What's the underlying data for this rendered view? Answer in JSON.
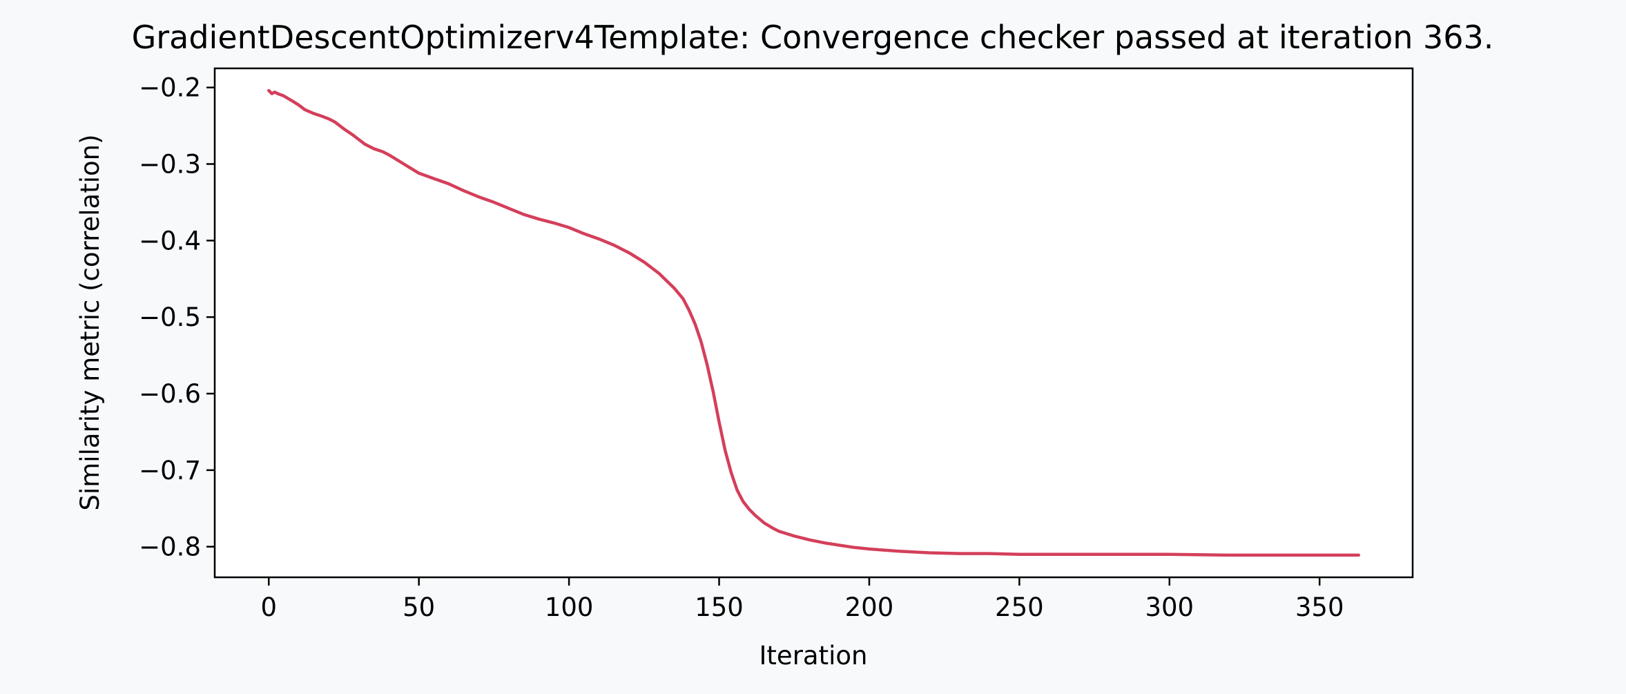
{
  "chart_data": {
    "type": "line",
    "title": "GradientDescentOptimizerv4Template: Convergence checker passed at iteration 363.",
    "xlabel": "Iteration",
    "ylabel": "Similarity metric (correlation)",
    "xlim": [
      -18,
      381
    ],
    "ylim": [
      -0.84,
      -0.175
    ],
    "xticks": [
      0,
      50,
      100,
      150,
      200,
      250,
      300,
      350
    ],
    "xtick_labels": [
      "0",
      "50",
      "100",
      "150",
      "200",
      "250",
      "300",
      "350"
    ],
    "yticks": [
      -0.2,
      -0.3,
      -0.4,
      -0.5,
      -0.6,
      -0.7,
      -0.8
    ],
    "ytick_labels": [
      "−0.2",
      "−0.3",
      "−0.4",
      "−0.5",
      "−0.6",
      "−0.7",
      "−0.8"
    ],
    "grid": false,
    "series": [
      {
        "color": "#d43f5a",
        "x": [
          0,
          1,
          2,
          3,
          5,
          8,
          10,
          12,
          15,
          18,
          20,
          22,
          25,
          28,
          30,
          32,
          35,
          38,
          40,
          45,
          50,
          55,
          60,
          65,
          70,
          75,
          80,
          85,
          90,
          95,
          100,
          105,
          110,
          115,
          120,
          125,
          130,
          135,
          138,
          140,
          142,
          144,
          146,
          148,
          150,
          152,
          154,
          156,
          158,
          160,
          162,
          165,
          168,
          170,
          175,
          180,
          185,
          190,
          195,
          200,
          210,
          220,
          230,
          240,
          250,
          260,
          280,
          300,
          320,
          340,
          363
        ],
        "y": [
          -0.204,
          -0.208,
          -0.206,
          -0.208,
          -0.211,
          -0.218,
          -0.223,
          -0.229,
          -0.234,
          -0.238,
          -0.241,
          -0.245,
          -0.254,
          -0.262,
          -0.268,
          -0.274,
          -0.28,
          -0.284,
          -0.288,
          -0.3,
          -0.312,
          -0.319,
          -0.326,
          -0.335,
          -0.343,
          -0.35,
          -0.358,
          -0.366,
          -0.372,
          -0.377,
          -0.383,
          -0.391,
          -0.398,
          -0.406,
          -0.416,
          -0.428,
          -0.443,
          -0.462,
          -0.476,
          -0.491,
          -0.509,
          -0.532,
          -0.562,
          -0.597,
          -0.637,
          -0.674,
          -0.703,
          -0.726,
          -0.741,
          -0.751,
          -0.759,
          -0.769,
          -0.776,
          -0.78,
          -0.786,
          -0.791,
          -0.795,
          -0.798,
          -0.801,
          -0.803,
          -0.806,
          -0.808,
          -0.809,
          -0.809,
          -0.81,
          -0.81,
          -0.81,
          -0.81,
          -0.811,
          -0.811,
          -0.811
        ]
      }
    ]
  }
}
